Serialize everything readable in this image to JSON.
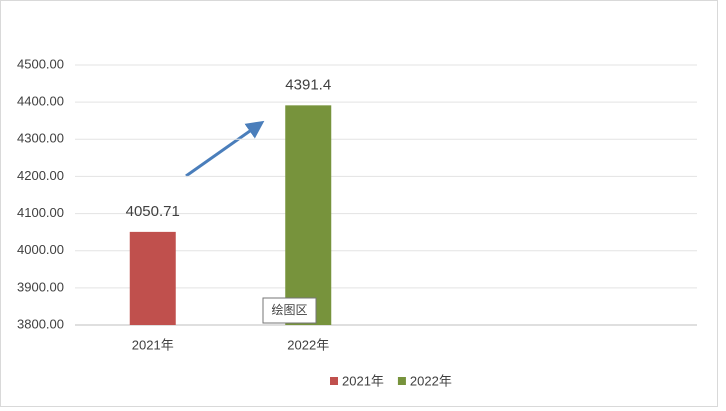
{
  "chart_data": {
    "type": "bar",
    "categories": [
      "2021年",
      "2022年",
      null,
      null
    ],
    "series": [
      {
        "name": "2021年",
        "color": "#c0504d",
        "values": [
          4050.71,
          null,
          null,
          null
        ]
      },
      {
        "name": "2022年",
        "color": "#77933c",
        "values": [
          null,
          4391.4,
          null,
          null
        ]
      }
    ],
    "ylim": [
      3800,
      4500
    ],
    "yticks": [
      {
        "value": 3800,
        "label": "3800.00"
      },
      {
        "value": 3900,
        "label": "3900.00"
      },
      {
        "value": 4000,
        "label": "4000.00"
      },
      {
        "value": 4100,
        "label": "4100.00"
      },
      {
        "value": 4200,
        "label": "4200.00"
      },
      {
        "value": 4300,
        "label": "4300.00"
      },
      {
        "value": 4400,
        "label": "4400.00"
      },
      {
        "value": 4500,
        "label": "4500.00"
      }
    ],
    "grid": true,
    "legend": "bottom",
    "tooltip": "绘图区"
  }
}
